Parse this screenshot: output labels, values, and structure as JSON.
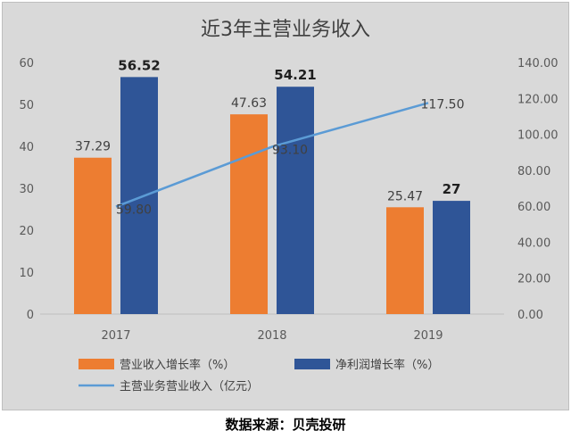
{
  "chart_data": {
    "type": "bar",
    "title": "近3年主营业务收入",
    "categories": [
      "2017",
      "2018",
      "2019"
    ],
    "series": [
      {
        "name": "营业收入增长率（%）",
        "type": "bar",
        "axis": "left",
        "color": "#ed7d31",
        "values": [
          37.29,
          47.63,
          25.47
        ],
        "labels": [
          "37.29",
          "47.63",
          "25.47"
        ]
      },
      {
        "name": "净利润增长率（%）",
        "type": "bar",
        "axis": "left",
        "color": "#2f5597",
        "values": [
          56.52,
          54.21,
          27
        ],
        "labels": [
          "56.52",
          "54.21",
          "27"
        ]
      },
      {
        "name": "主营业务营业收入（亿元）",
        "type": "line",
        "axis": "right",
        "color": "#5b9bd5",
        "values": [
          59.8,
          93.1,
          117.5
        ],
        "labels": [
          "59.80",
          "93.10",
          "117.50"
        ]
      }
    ],
    "y_left": {
      "ylim": [
        0,
        60
      ],
      "ticks": [
        "0",
        "10",
        "20",
        "30",
        "40",
        "50",
        "60"
      ]
    },
    "y_right": {
      "ylim": [
        0,
        140
      ],
      "ticks": [
        "0.00",
        "20.00",
        "40.00",
        "60.00",
        "80.00",
        "100.00",
        "120.00",
        "140.00"
      ]
    },
    "grid": false,
    "legend_position": "bottom-left"
  },
  "source": "数据来源：贝壳投研"
}
